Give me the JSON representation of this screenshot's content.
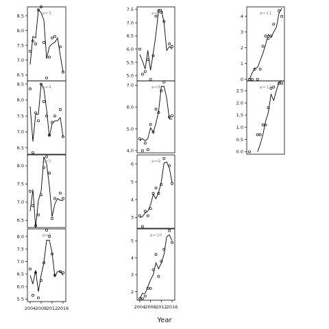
{
  "figure": {
    "xlabel": "Year",
    "colors": {
      "axis": "#000000",
      "line": "#000000",
      "label": "#8a8a8a",
      "background": "#ffffff"
    }
  },
  "chart_data": [
    {
      "type": "scatter",
      "panel_label": "a=3",
      "xlim": [
        2003,
        2017
      ],
      "ylim": [
        6.3,
        8.8
      ],
      "yticks": [
        "6.5",
        "7.0",
        "7.5",
        "8.0",
        "8.5"
      ],
      "yticks_num": [
        6.5,
        7.0,
        7.5,
        8.0,
        8.5
      ],
      "xticks": [],
      "xticks_num": [],
      "points": [
        [
          2004,
          7.3
        ],
        [
          2005,
          7.65
        ],
        [
          2006,
          7.55
        ],
        [
          2007,
          8.7
        ],
        [
          2008,
          8.8
        ],
        [
          2009,
          7.6
        ],
        [
          2010,
          6.4
        ],
        [
          2011,
          7.1
        ],
        [
          2012,
          7.75
        ],
        [
          2013,
          7.8
        ],
        [
          2015,
          7.45
        ],
        [
          2016,
          6.6
        ]
      ],
      "line": [
        [
          2004,
          6.85
        ],
        [
          2005,
          7.8
        ],
        [
          2006,
          7.75
        ],
        [
          2007,
          8.7
        ],
        [
          2008,
          8.6
        ],
        [
          2009,
          8.35
        ],
        [
          2010,
          7.05
        ],
        [
          2011,
          7.45
        ],
        [
          2012,
          7.55
        ],
        [
          2013,
          7.6
        ],
        [
          2014,
          7.75
        ],
        [
          2015,
          7.15
        ],
        [
          2016,
          6.6
        ]
      ]
    },
    {
      "type": "scatter",
      "panel_label": "a=7",
      "xlim": [
        2003,
        2017
      ],
      "ylim": [
        4.8,
        7.6
      ],
      "yticks": [
        "5.0",
        "5.5",
        "6.0",
        "6.5",
        "7.0",
        "7.5"
      ],
      "yticks_num": [
        5.0,
        5.5,
        6.0,
        6.5,
        7.0,
        7.5
      ],
      "xticks": [],
      "xticks_num": [],
      "points": [
        [
          2004,
          6.0
        ],
        [
          2005,
          5.05
        ],
        [
          2006,
          5.15
        ],
        [
          2007,
          5.6
        ],
        [
          2008,
          4.85
        ],
        [
          2009,
          5.75
        ],
        [
          2010,
          7.25
        ],
        [
          2011,
          7.45
        ],
        [
          2012,
          7.4
        ],
        [
          2013,
          7.05
        ],
        [
          2015,
          6.2
        ],
        [
          2016,
          6.1
        ]
      ],
      "line": [
        [
          2004,
          5.8
        ],
        [
          2005,
          5.55
        ],
        [
          2006,
          5.25
        ],
        [
          2007,
          5.95
        ],
        [
          2008,
          5.2
        ],
        [
          2009,
          5.85
        ],
        [
          2010,
          6.55
        ],
        [
          2011,
          7.5
        ],
        [
          2012,
          7.5
        ],
        [
          2013,
          7.0
        ],
        [
          2014,
          5.95
        ],
        [
          2015,
          6.1
        ],
        [
          2016,
          6.0
        ]
      ]
    },
    {
      "type": "scatter",
      "panel_label": "a=11",
      "xlim": [
        2003,
        2017
      ],
      "ylim": [
        -0.1,
        4.6
      ],
      "yticks": [
        "0",
        "1",
        "2",
        "3",
        "4"
      ],
      "yticks_num": [
        0,
        1,
        2,
        3,
        4
      ],
      "xticks": [],
      "xticks_num": [],
      "points": [
        [
          2004,
          0.0
        ],
        [
          2005,
          0.0
        ],
        [
          2006,
          0.65
        ],
        [
          2007,
          0.0
        ],
        [
          2008,
          0.65
        ],
        [
          2009,
          2.1
        ],
        [
          2010,
          2.75
        ],
        [
          2011,
          2.6
        ],
        [
          2012,
          2.75
        ],
        [
          2013,
          3.5
        ],
        [
          2015,
          4.35
        ],
        [
          2016,
          4.0
        ]
      ],
      "line": [
        [
          2004,
          0.0
        ],
        [
          2005,
          0.4
        ],
        [
          2006,
          0.7
        ],
        [
          2007,
          0.75
        ],
        [
          2008,
          1.2
        ],
        [
          2009,
          1.65
        ],
        [
          2010,
          2.2
        ],
        [
          2011,
          2.85
        ],
        [
          2012,
          2.65
        ],
        [
          2013,
          3.0
        ],
        [
          2014,
          3.3
        ],
        [
          2015,
          4.2
        ],
        [
          2016,
          4.5
        ]
      ]
    },
    {
      "type": "scatter",
      "panel_label": "a=4",
      "xlim": [
        2003,
        2017
      ],
      "ylim": [
        6.3,
        8.6
      ],
      "yticks": [
        "6.5",
        "7.0",
        "7.5",
        "8.0",
        "8.5"
      ],
      "yticks_num": [
        6.5,
        7.0,
        7.5,
        8.0,
        8.5
      ],
      "xticks": [],
      "xticks_num": [],
      "points": [
        [
          2004,
          8.35
        ],
        [
          2005,
          6.35
        ],
        [
          2006,
          7.6
        ],
        [
          2007,
          7.35
        ],
        [
          2008,
          8.5
        ],
        [
          2009,
          7.95
        ],
        [
          2010,
          7.5
        ],
        [
          2011,
          6.9
        ],
        [
          2012,
          7.3
        ],
        [
          2013,
          7.5
        ],
        [
          2015,
          7.7
        ],
        [
          2016,
          6.85
        ]
      ],
      "line": [
        [
          2004,
          7.8
        ],
        [
          2005,
          6.7
        ],
        [
          2006,
          7.55
        ],
        [
          2007,
          7.55
        ],
        [
          2008,
          8.5
        ],
        [
          2009,
          8.35
        ],
        [
          2010,
          7.7
        ],
        [
          2011,
          6.85
        ],
        [
          2012,
          7.25
        ],
        [
          2013,
          7.35
        ],
        [
          2014,
          7.35
        ],
        [
          2015,
          7.45
        ],
        [
          2016,
          6.85
        ]
      ]
    },
    {
      "type": "scatter",
      "panel_label": "a=8",
      "xlim": [
        2003,
        2017
      ],
      "ylim": [
        3.9,
        7.2
      ],
      "yticks": [
        "4.0",
        "5.0",
        "6.0",
        "7.0"
      ],
      "yticks_num": [
        4.0,
        5.0,
        6.0,
        7.0
      ],
      "xticks": [],
      "xticks_num": [],
      "points": [
        [
          2004,
          4.55
        ],
        [
          2005,
          4.0
        ],
        [
          2006,
          4.35
        ],
        [
          2007,
          4.05
        ],
        [
          2008,
          5.2
        ],
        [
          2009,
          4.85
        ],
        [
          2010,
          5.9
        ],
        [
          2011,
          5.75
        ],
        [
          2012,
          6.75
        ],
        [
          2013,
          7.15
        ],
        [
          2015,
          5.55
        ],
        [
          2016,
          5.6
        ]
      ],
      "line": [
        [
          2004,
          4.45
        ],
        [
          2005,
          4.55
        ],
        [
          2006,
          4.45
        ],
        [
          2007,
          4.55
        ],
        [
          2008,
          5.05
        ],
        [
          2009,
          4.85
        ],
        [
          2010,
          5.25
        ],
        [
          2011,
          5.8
        ],
        [
          2012,
          6.95
        ],
        [
          2013,
          6.95
        ],
        [
          2014,
          6.4
        ],
        [
          2015,
          5.45
        ],
        [
          2016,
          5.45
        ]
      ]
    },
    {
      "type": "scatter",
      "panel_label": "a=12",
      "xlim": [
        2003,
        2017
      ],
      "ylim": [
        -0.1,
        2.9
      ],
      "yticks": [
        "0.0",
        "0.5",
        "1.0",
        "1.5",
        "2.0",
        "2.5"
      ],
      "yticks_num": [
        0.0,
        0.5,
        1.0,
        1.5,
        2.0,
        2.5
      ],
      "xticks": [],
      "xticks_num": [],
      "points": [
        [
          2004,
          0.0
        ],
        [
          2007,
          0.7
        ],
        [
          2008,
          0.7
        ],
        [
          2009,
          1.1
        ],
        [
          2010,
          1.1
        ],
        [
          2011,
          1.8
        ],
        [
          2012,
          2.6
        ],
        [
          2013,
          2.65
        ],
        [
          2015,
          2.8
        ],
        [
          2016,
          2.8
        ]
      ],
      "line": [
        [
          2007,
          0.0
        ],
        [
          2008,
          0.3
        ],
        [
          2009,
          0.7
        ],
        [
          2010,
          1.25
        ],
        [
          2011,
          1.6
        ],
        [
          2012,
          2.35
        ],
        [
          2013,
          2.1
        ],
        [
          2014,
          2.5
        ],
        [
          2015,
          2.85
        ],
        [
          2016,
          2.9
        ]
      ]
    },
    {
      "type": "scatter",
      "panel_label": "a=5",
      "xlim": [
        2003,
        2017
      ],
      "ylim": [
        6.3,
        8.3
      ],
      "yticks": [
        "6.5",
        "7.0",
        "7.5",
        "8.0"
      ],
      "yticks_num": [
        6.5,
        7.0,
        7.5,
        8.0
      ],
      "xticks": [],
      "xticks_num": [],
      "points": [
        [
          2004,
          7.3
        ],
        [
          2005,
          6.9
        ],
        [
          2006,
          6.35
        ],
        [
          2007,
          6.65
        ],
        [
          2008,
          7.2
        ],
        [
          2009,
          7.95
        ],
        [
          2010,
          8.25
        ],
        [
          2011,
          7.8
        ],
        [
          2012,
          6.55
        ],
        [
          2013,
          7.1
        ],
        [
          2015,
          7.25
        ],
        [
          2016,
          7.1
        ]
      ],
      "line": [
        [
          2004,
          6.75
        ],
        [
          2005,
          7.35
        ],
        [
          2006,
          6.3
        ],
        [
          2007,
          7.05
        ],
        [
          2008,
          7.3
        ],
        [
          2009,
          8.25
        ],
        [
          2010,
          8.05
        ],
        [
          2011,
          7.45
        ],
        [
          2012,
          6.6
        ],
        [
          2013,
          6.95
        ],
        [
          2014,
          7.1
        ],
        [
          2015,
          7.05
        ],
        [
          2016,
          7.05
        ]
      ]
    },
    {
      "type": "scatter",
      "panel_label": "a=9",
      "xlim": [
        2003,
        2017
      ],
      "ylim": [
        2.4,
        6.5
      ],
      "yticks": [
        "3",
        "4",
        "5",
        "6"
      ],
      "yticks_num": [
        3,
        4,
        5,
        6
      ],
      "xticks": [],
      "xticks_num": [],
      "points": [
        [
          2004,
          3.1
        ],
        [
          2005,
          2.5
        ],
        [
          2006,
          3.35
        ],
        [
          2007,
          3.1
        ],
        [
          2008,
          3.5
        ],
        [
          2009,
          4.35
        ],
        [
          2010,
          4.65
        ],
        [
          2011,
          4.35
        ],
        [
          2012,
          4.85
        ],
        [
          2013,
          6.3
        ],
        [
          2015,
          5.9
        ],
        [
          2016,
          4.9
        ]
      ],
      "line": [
        [
          2004,
          3.0
        ],
        [
          2005,
          3.05
        ],
        [
          2006,
          3.25
        ],
        [
          2007,
          3.35
        ],
        [
          2008,
          3.7
        ],
        [
          2009,
          4.3
        ],
        [
          2010,
          4.05
        ],
        [
          2011,
          4.4
        ],
        [
          2012,
          5.0
        ],
        [
          2013,
          6.05
        ],
        [
          2014,
          6.1
        ],
        [
          2015,
          5.75
        ],
        [
          2016,
          4.95
        ]
      ]
    },
    {
      "type": "scatter",
      "panel_label": "a=6",
      "xlim": [
        2003,
        2017
      ],
      "ylim": [
        5.4,
        8.3
      ],
      "yticks": [
        "5.5",
        "6.0",
        "6.5",
        "7.0",
        "7.5",
        "8.0"
      ],
      "yticks_num": [
        5.5,
        6.0,
        6.5,
        7.0,
        7.5,
        8.0
      ],
      "xticks": [
        "2004",
        "2008",
        "2012",
        "2016"
      ],
      "xticks_num": [
        2004,
        2008,
        2012,
        2016
      ],
      "points": [
        [
          2004,
          6.7
        ],
        [
          2005,
          5.65
        ],
        [
          2006,
          6.55
        ],
        [
          2007,
          5.55
        ],
        [
          2008,
          6.25
        ],
        [
          2009,
          6.95
        ],
        [
          2010,
          8.25
        ],
        [
          2011,
          8.0
        ],
        [
          2012,
          7.3
        ],
        [
          2013,
          6.45
        ],
        [
          2015,
          6.6
        ],
        [
          2016,
          6.55
        ]
      ],
      "line": [
        [
          2004,
          6.45
        ],
        [
          2005,
          6.1
        ],
        [
          2006,
          6.65
        ],
        [
          2007,
          5.8
        ],
        [
          2008,
          6.45
        ],
        [
          2009,
          6.95
        ],
        [
          2010,
          7.85
        ],
        [
          2011,
          7.85
        ],
        [
          2012,
          7.35
        ],
        [
          2013,
          6.4
        ],
        [
          2014,
          6.6
        ],
        [
          2015,
          6.6
        ],
        [
          2016,
          6.45
        ]
      ]
    },
    {
      "type": "scatter",
      "panel_label": "a=10",
      "xlim": [
        2003,
        2017
      ],
      "ylim": [
        1.5,
        5.7
      ],
      "yticks": [
        "2",
        "3",
        "4",
        "5"
      ],
      "yticks_num": [
        2,
        3,
        4,
        5
      ],
      "xticks": [
        "2004",
        "2008",
        "2012",
        "2016"
      ],
      "xticks_num": [
        2004,
        2008,
        2012,
        2016
      ],
      "points": [
        [
          2004,
          1.6
        ],
        [
          2005,
          1.6
        ],
        [
          2006,
          1.75
        ],
        [
          2007,
          2.2
        ],
        [
          2008,
          2.2
        ],
        [
          2009,
          3.3
        ],
        [
          2010,
          4.2
        ],
        [
          2011,
          2.9
        ],
        [
          2012,
          3.8
        ],
        [
          2013,
          4.5
        ],
        [
          2015,
          5.6
        ],
        [
          2016,
          4.9
        ]
      ],
      "line": [
        [
          2004,
          1.6
        ],
        [
          2005,
          1.9
        ],
        [
          2006,
          1.9
        ],
        [
          2007,
          2.3
        ],
        [
          2008,
          2.7
        ],
        [
          2009,
          3.0
        ],
        [
          2010,
          3.7
        ],
        [
          2011,
          3.35
        ],
        [
          2012,
          3.7
        ],
        [
          2013,
          4.2
        ],
        [
          2014,
          5.25
        ],
        [
          2015,
          5.35
        ],
        [
          2016,
          5.0
        ]
      ]
    }
  ]
}
